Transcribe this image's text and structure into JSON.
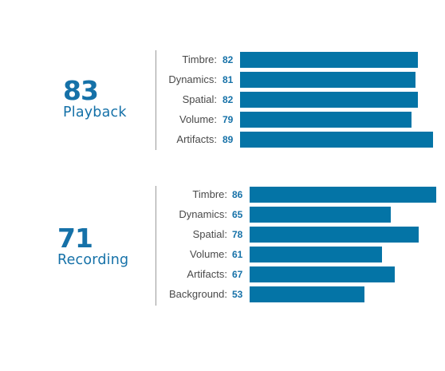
{
  "colors": {
    "accent": "#1571a8",
    "bar": "#0474a6",
    "label": "#4a4a4a",
    "divider": "#9a9a9a"
  },
  "scale_max_value": 89,
  "sections": [
    {
      "score": "83",
      "label": "Playback",
      "metrics": [
        {
          "name": "Timbre:",
          "value": 82
        },
        {
          "name": "Dynamics:",
          "value": 81
        },
        {
          "name": "Spatial:",
          "value": 82
        },
        {
          "name": "Volume:",
          "value": 79
        },
        {
          "name": "Artifacts:",
          "value": 89
        }
      ]
    },
    {
      "score": "71",
      "label": "Recording",
      "metrics": [
        {
          "name": "Timbre:",
          "value": 86
        },
        {
          "name": "Dynamics:",
          "value": 65
        },
        {
          "name": "Spatial:",
          "value": 78
        },
        {
          "name": "Volume:",
          "value": 61
        },
        {
          "name": "Artifacts:",
          "value": 67
        },
        {
          "name": "Background:",
          "value": 53
        }
      ]
    }
  ]
}
